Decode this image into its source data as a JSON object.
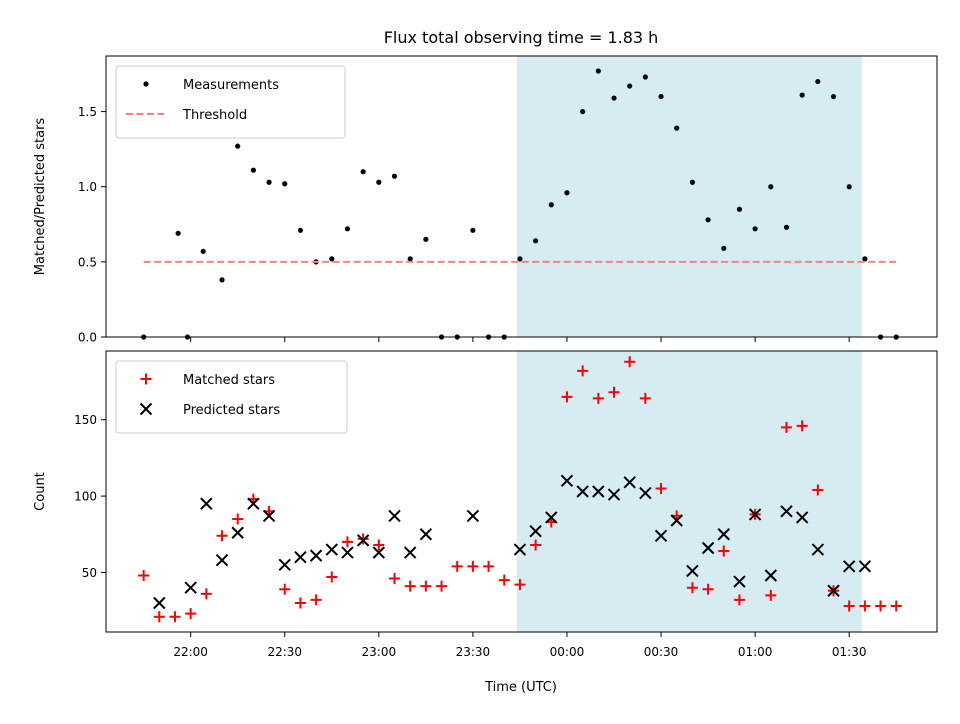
{
  "chart_data": {
    "title": "Flux total observing time = 1.83 h",
    "xlabel": "Time (UTC)",
    "x_tick_labels": [
      "22:00",
      "22:30",
      "23:00",
      "23:30",
      "00:00",
      "00:30",
      "01:00",
      "01:30"
    ],
    "x_tick_minutes": [
      0,
      30,
      60,
      90,
      120,
      150,
      180,
      210
    ],
    "x_note": "minutes relative to 22:00 UTC",
    "xlim_minutes": [
      -27,
      238
    ],
    "highlight_minutes": [
      104,
      214
    ],
    "highlight_color": "#add8e6",
    "panels": [
      {
        "type": "scatter",
        "ylabel": "Matched/Predicted stars",
        "ylim": [
          0,
          1.87
        ],
        "yticks": [
          0.0,
          0.5,
          1.0,
          1.5
        ],
        "ytick_labels": [
          "0.0",
          "0.5",
          "1.0",
          "1.5"
        ],
        "legend_position": "upper-left",
        "series": [
          {
            "name": "Measurements",
            "marker": "dot",
            "color": "#000000",
            "x": [
              -15,
              -4,
              -1,
              4,
              10,
              15,
              20,
              25,
              30,
              35,
              40,
              45,
              50,
              55,
              60,
              65,
              70,
              75,
              80,
              85,
              90,
              95,
              100,
              105,
              110,
              115,
              120,
              125,
              130,
              135,
              140,
              145,
              150,
              155,
              160,
              165,
              170,
              175,
              180,
              185,
              190,
              195,
              200,
              205,
              210,
              215,
              220,
              225
            ],
            "y": [
              0.0,
              0.69,
              0.0,
              0.57,
              0.38,
              1.27,
              1.11,
              1.03,
              1.02,
              0.71,
              0.5,
              0.52,
              0.72,
              1.1,
              1.03,
              1.07,
              0.52,
              0.65,
              0.0,
              0.0,
              0.71,
              0.0,
              0.0,
              0.52,
              0.64,
              0.88,
              0.96,
              1.5,
              1.77,
              1.59,
              1.67,
              1.73,
              1.6,
              1.39,
              1.03,
              0.78,
              0.59,
              0.85,
              0.72,
              1.0,
              0.73,
              1.61,
              1.7,
              1.6,
              1.0,
              0.52,
              0.0,
              0.0
            ]
          },
          {
            "name": "Threshold",
            "type": "line",
            "style": "dashed",
            "color": "#ff7f7f",
            "x": [
              -15,
              225
            ],
            "y": [
              0.5,
              0.5
            ]
          }
        ]
      },
      {
        "type": "scatter",
        "ylabel": "Count",
        "ylim": [
          11,
          195
        ],
        "yticks": [
          50,
          100,
          150
        ],
        "ytick_labels": [
          "50",
          "100",
          "150"
        ],
        "legend_position": "upper-left",
        "series": [
          {
            "name": "Matched stars",
            "marker": "plus",
            "color": "#ff0000",
            "x": [
              -15,
              -10,
              -5,
              0,
              5,
              10,
              15,
              20,
              25,
              30,
              35,
              40,
              45,
              50,
              55,
              60,
              65,
              70,
              75,
              80,
              85,
              90,
              95,
              100,
              105,
              110,
              115,
              120,
              125,
              130,
              135,
              140,
              145,
              150,
              155,
              160,
              165,
              170,
              175,
              180,
              185,
              190,
              195,
              200,
              205,
              210,
              215,
              220,
              225
            ],
            "y": [
              48,
              21,
              21,
              23,
              36,
              74,
              85,
              98,
              90,
              39,
              30,
              32,
              47,
              70,
              72,
              68,
              46,
              41,
              41,
              41,
              54,
              54,
              54,
              45,
              42,
              68,
              83,
              165,
              182,
              164,
              168,
              188,
              164,
              105,
              87,
              40,
              39,
              64,
              32,
              88,
              35,
              145,
              146,
              104,
              38,
              28,
              28,
              28,
              28
            ]
          },
          {
            "name": "Predicted stars",
            "marker": "x",
            "color": "#000000",
            "x": [
              -10,
              0,
              5,
              10,
              15,
              20,
              25,
              30,
              35,
              40,
              45,
              50,
              55,
              60,
              65,
              70,
              75,
              90,
              105,
              110,
              115,
              120,
              125,
              130,
              135,
              140,
              145,
              150,
              155,
              160,
              165,
              170,
              175,
              180,
              185,
              190,
              195,
              200,
              205,
              210,
              215
            ],
            "y": [
              30,
              40,
              95,
              58,
              76,
              95,
              87,
              55,
              60,
              61,
              65,
              63,
              71,
              63,
              87,
              63,
              75,
              87,
              65,
              77,
              86,
              110,
              103,
              103,
              101,
              109,
              102,
              74,
              84,
              51,
              66,
              75,
              44,
              88,
              48,
              90,
              86,
              65,
              38,
              54,
              54
            ]
          }
        ]
      }
    ]
  }
}
